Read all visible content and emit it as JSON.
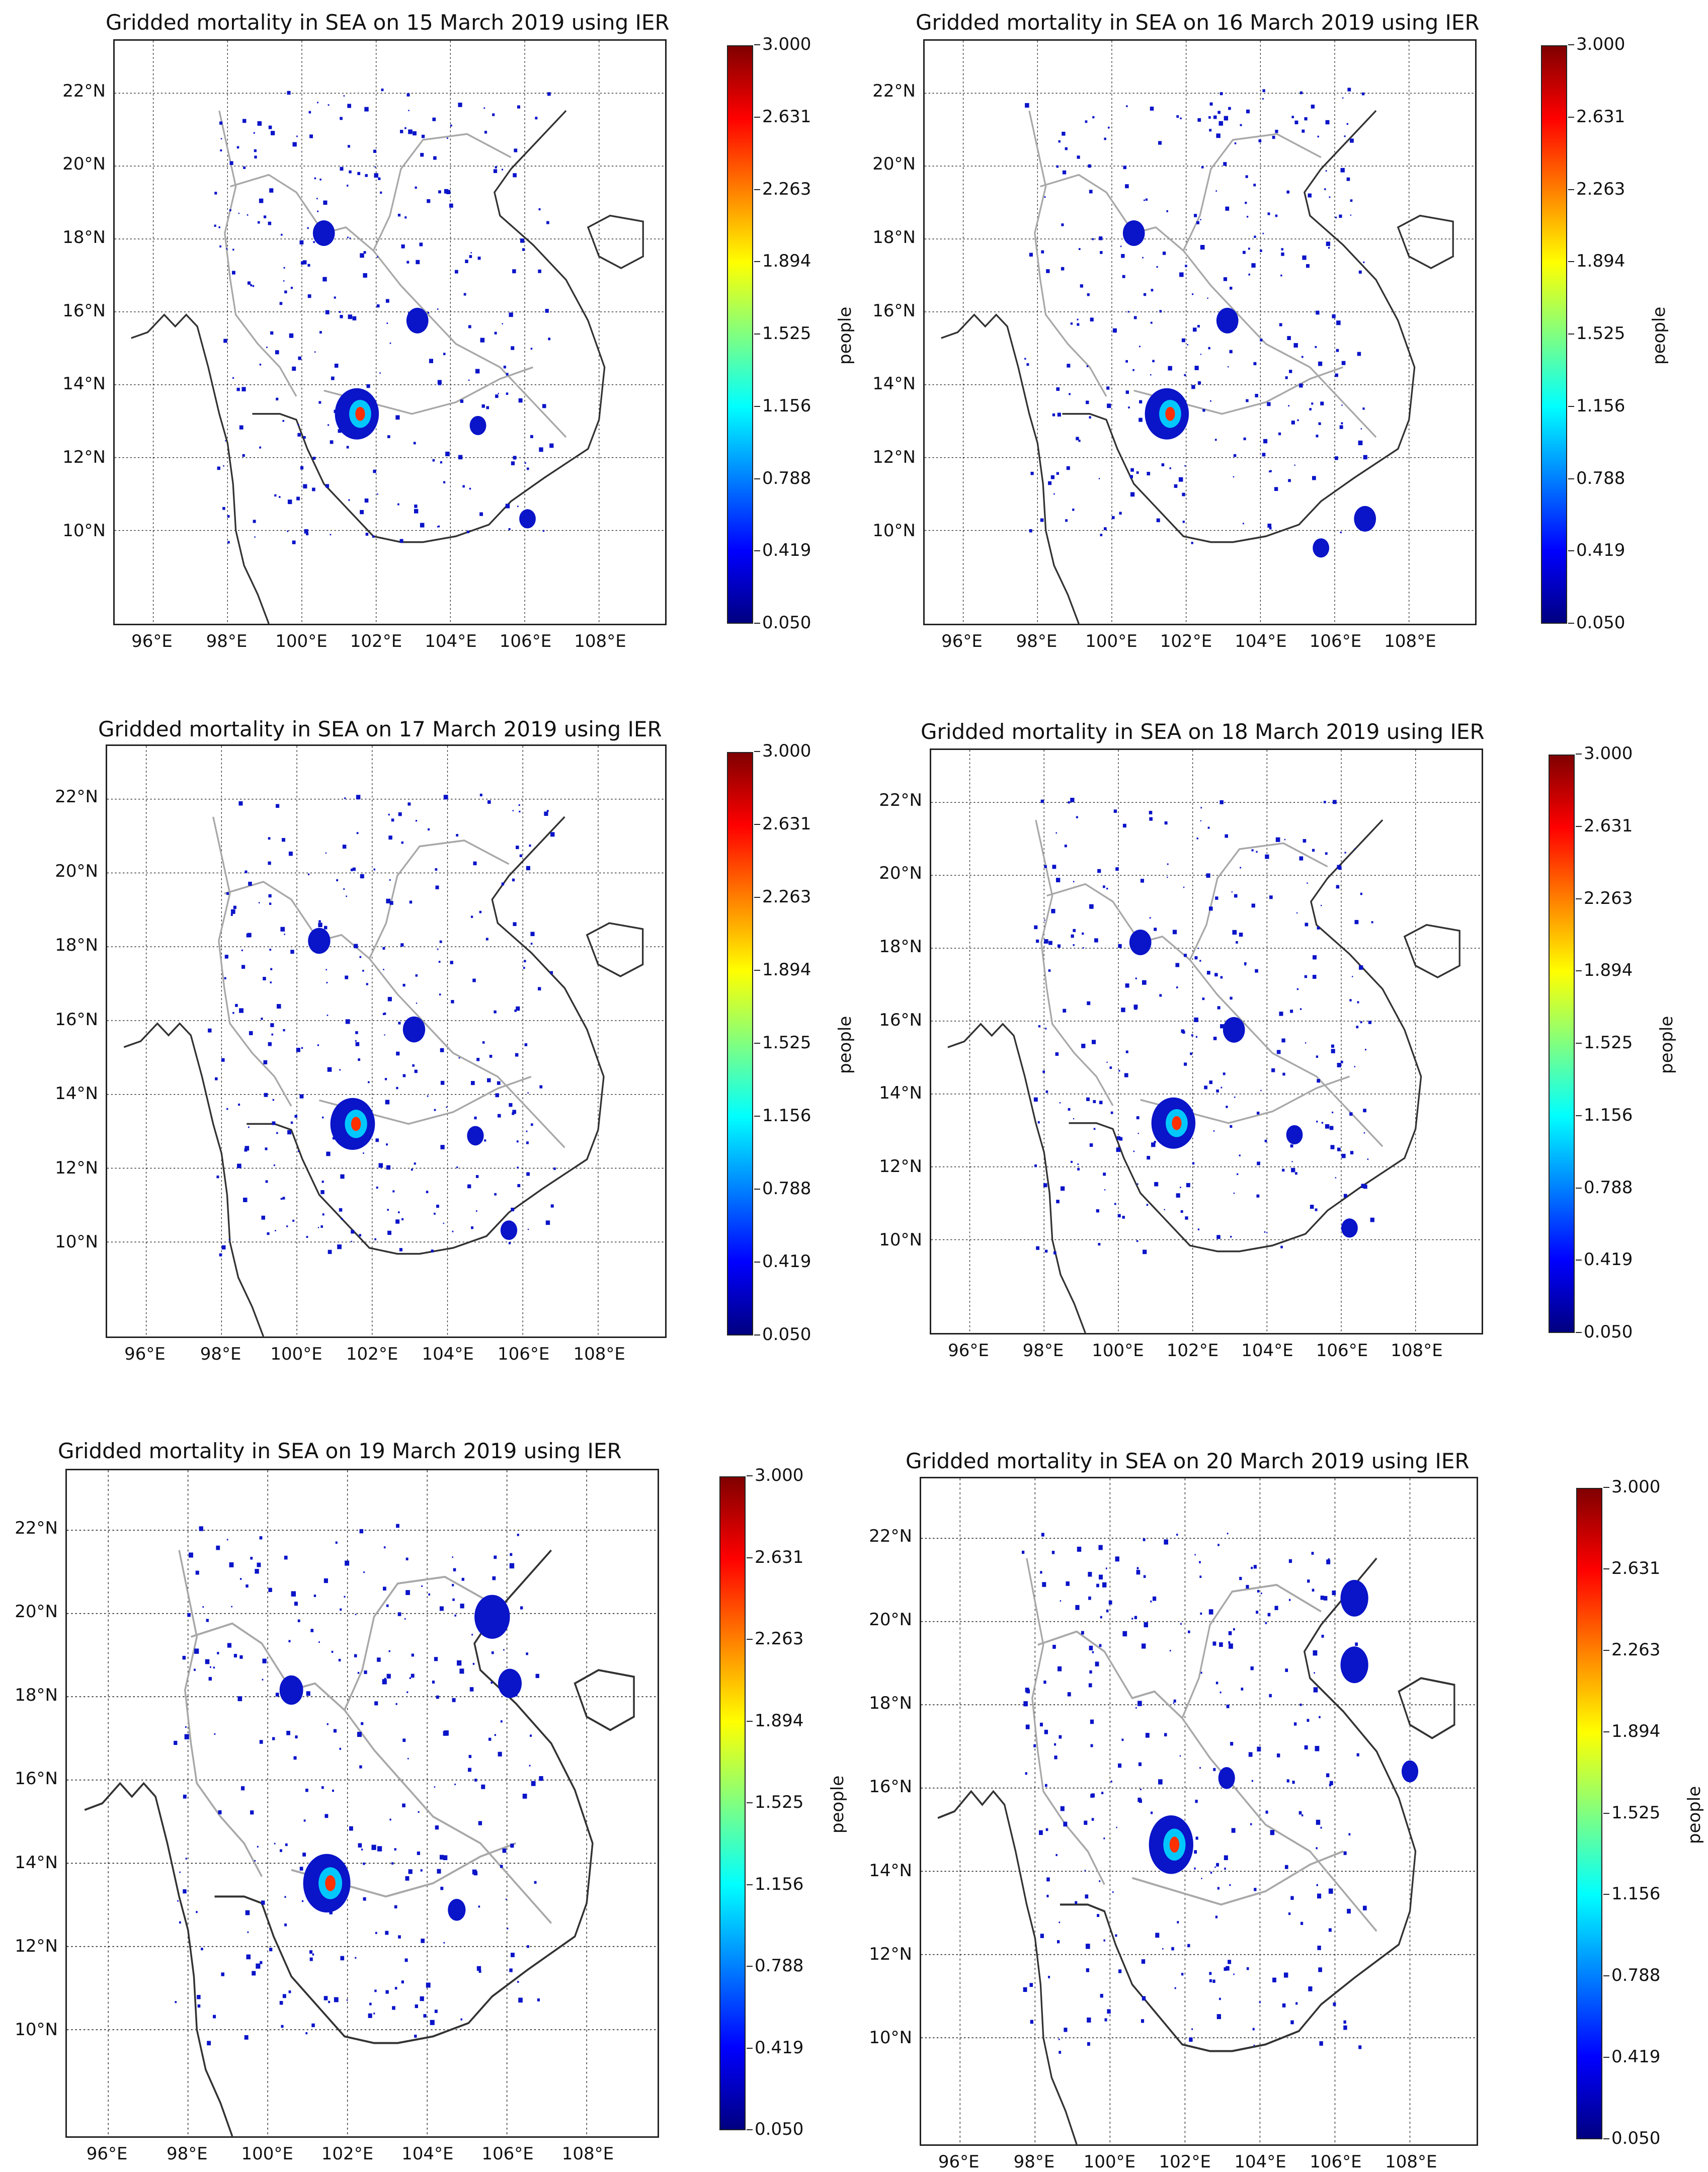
{
  "figure": {
    "panels": [
      {
        "title": "Gridded mortality in SEA on 15 March 2019 using IER"
      },
      {
        "title": "Gridded mortality in SEA on 16 March 2019 using IER"
      },
      {
        "title": "Gridded mortality in SEA on 17 March 2019 using IER"
      },
      {
        "title": "Gridded mortality in SEA on 18 March 2019 using IER"
      },
      {
        "title": "Gridded mortality in SEA on 19 March 2019 using IER"
      },
      {
        "title": "Gridded mortality in SEA on 20 March 2019 using IER"
      }
    ],
    "lat_labels": [
      "22°N",
      "20°N",
      "18°N",
      "16°N",
      "14°N",
      "12°N",
      "10°N"
    ],
    "lon_labels": [
      "96°E",
      "98°E",
      "100°E",
      "102°E",
      "104°E",
      "106°E",
      "108°E"
    ],
    "colorbar": {
      "label": "people",
      "ticks": [
        "3.000",
        "2.631",
        "2.263",
        "1.894",
        "1.525",
        "1.156",
        "0.788",
        "0.419",
        "0.050"
      ],
      "colors": [
        "#800000",
        "#ff0000",
        "#ff8000",
        "#ffff00",
        "#80ff80",
        "#00ffff",
        "#0080ff",
        "#0000ff",
        "#000080"
      ]
    }
  }
}
